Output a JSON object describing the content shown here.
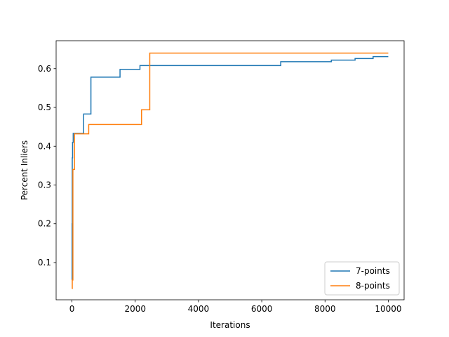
{
  "chart_data": {
    "type": "line",
    "title": "",
    "xlabel": "Iterations",
    "ylabel": "Percent Inliers",
    "xlim": [
      -500,
      10500
    ],
    "ylim": [
      0.004,
      0.672
    ],
    "xticks": [
      0,
      2000,
      4000,
      6000,
      8000,
      10000
    ],
    "xtick_labels": [
      "0",
      "2000",
      "4000",
      "6000",
      "8000",
      "10000"
    ],
    "yticks": [
      0.1,
      0.2,
      0.3,
      0.4,
      0.5,
      0.6
    ],
    "ytick_labels": [
      "0.1",
      "0.2",
      "0.3",
      "0.4",
      "0.5",
      "0.6"
    ],
    "grid": false,
    "legend_position": "lower-right",
    "series": [
      {
        "name": "7-points",
        "color": "#1f77b4",
        "step": true,
        "x": [
          0,
          5,
          10,
          20,
          40,
          370,
          600,
          1520,
          2150,
          6600,
          8200,
          8950,
          9520,
          10000
        ],
        "y": [
          0.055,
          0.2,
          0.37,
          0.41,
          0.433,
          0.483,
          0.578,
          0.598,
          0.608,
          0.618,
          0.622,
          0.626,
          0.631,
          0.631
        ]
      },
      {
        "name": "8-points",
        "color": "#ff7f0e",
        "step": true,
        "x": [
          0,
          10,
          30,
          50,
          80,
          530,
          2200,
          2460,
          10000
        ],
        "y": [
          0.033,
          0.055,
          0.34,
          0.34,
          0.432,
          0.456,
          0.494,
          0.64,
          0.64
        ]
      }
    ]
  }
}
